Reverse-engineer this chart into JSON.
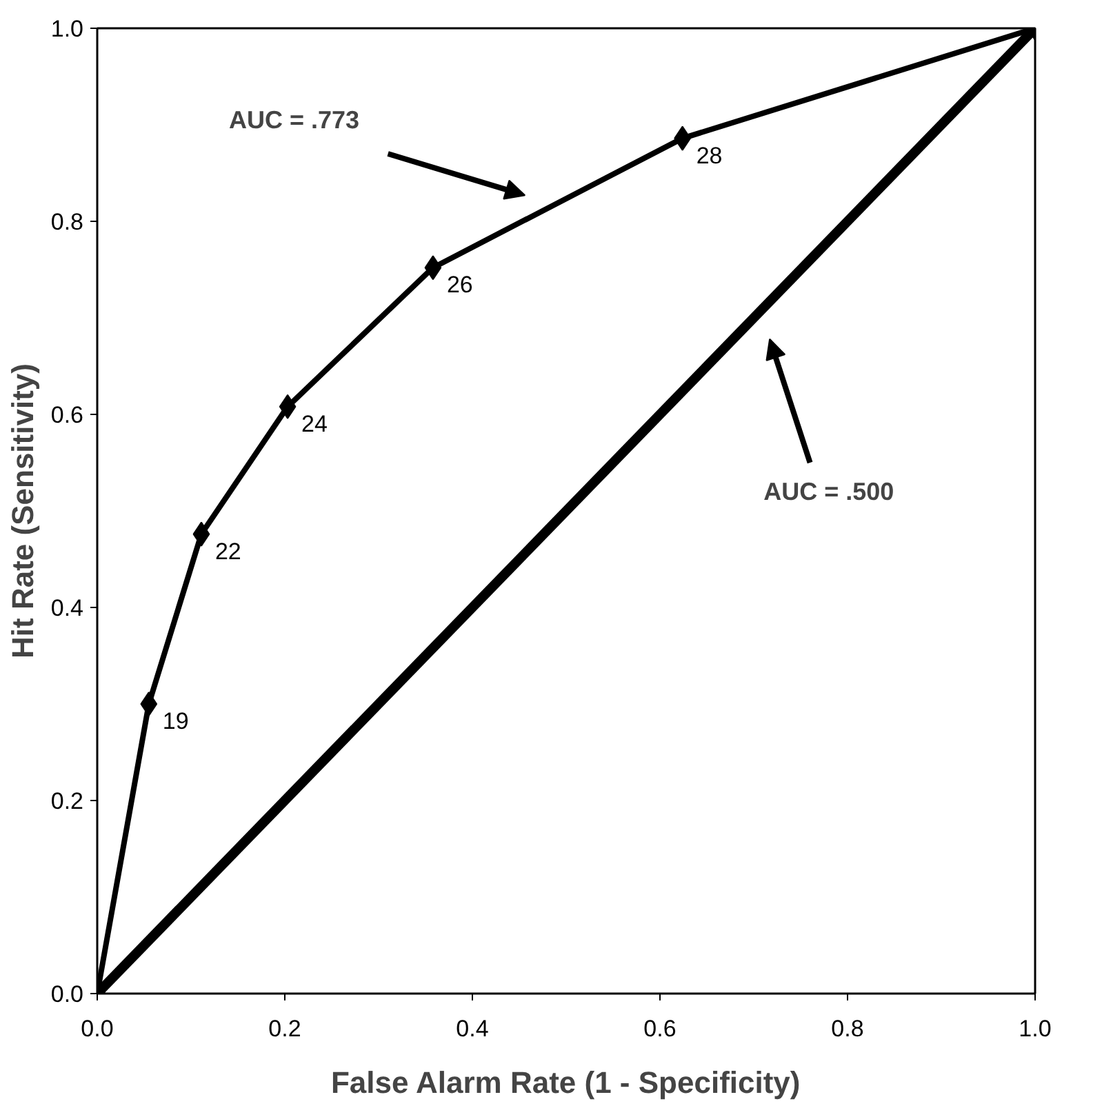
{
  "chart_data": {
    "type": "line",
    "xlabel": "False Alarm Rate (1 - Specificity)",
    "ylabel": "Hit Rate (Sensitivity)",
    "xlim": [
      0,
      1
    ],
    "ylim": [
      0,
      1
    ],
    "xticks": [
      {
        "value": 0,
        "label": "0.0"
      },
      0.2,
      0.4,
      0.6,
      0.8,
      {
        "value": 1,
        "label": "1.0"
      }
    ],
    "yticks": [
      {
        "value": 0,
        "label": "0.0"
      },
      0.2,
      0.4,
      0.6,
      0.8,
      {
        "value": 1,
        "label": "1.0"
      }
    ],
    "grid": false,
    "series": [
      {
        "color": "#000000",
        "marker": "diamond",
        "x": [
          0,
          0.055,
          0.111,
          0.203,
          0.358,
          0.624,
          1
        ],
        "values": [
          0,
          0.3,
          0.476,
          0.608,
          0.752,
          0.886,
          1
        ]
      },
      {
        "color": "#000000",
        "marker": "none",
        "x": [
          0,
          1
        ],
        "values": [
          0,
          1
        ]
      }
    ],
    "annotations": [
      "AUC = .773",
      "AUC = .500",
      {
        "text": "19",
        "x": 0.055,
        "y": 0.3
      },
      {
        "text": "22",
        "x": 0.111,
        "y": 0.476
      },
      {
        "text": "24",
        "x": 0.203,
        "y": 0.608
      },
      {
        "text": "26",
        "x": 0.358,
        "y": 0.752
      },
      {
        "text": "28",
        "x": 0.624,
        "y": 0.886
      }
    ]
  }
}
